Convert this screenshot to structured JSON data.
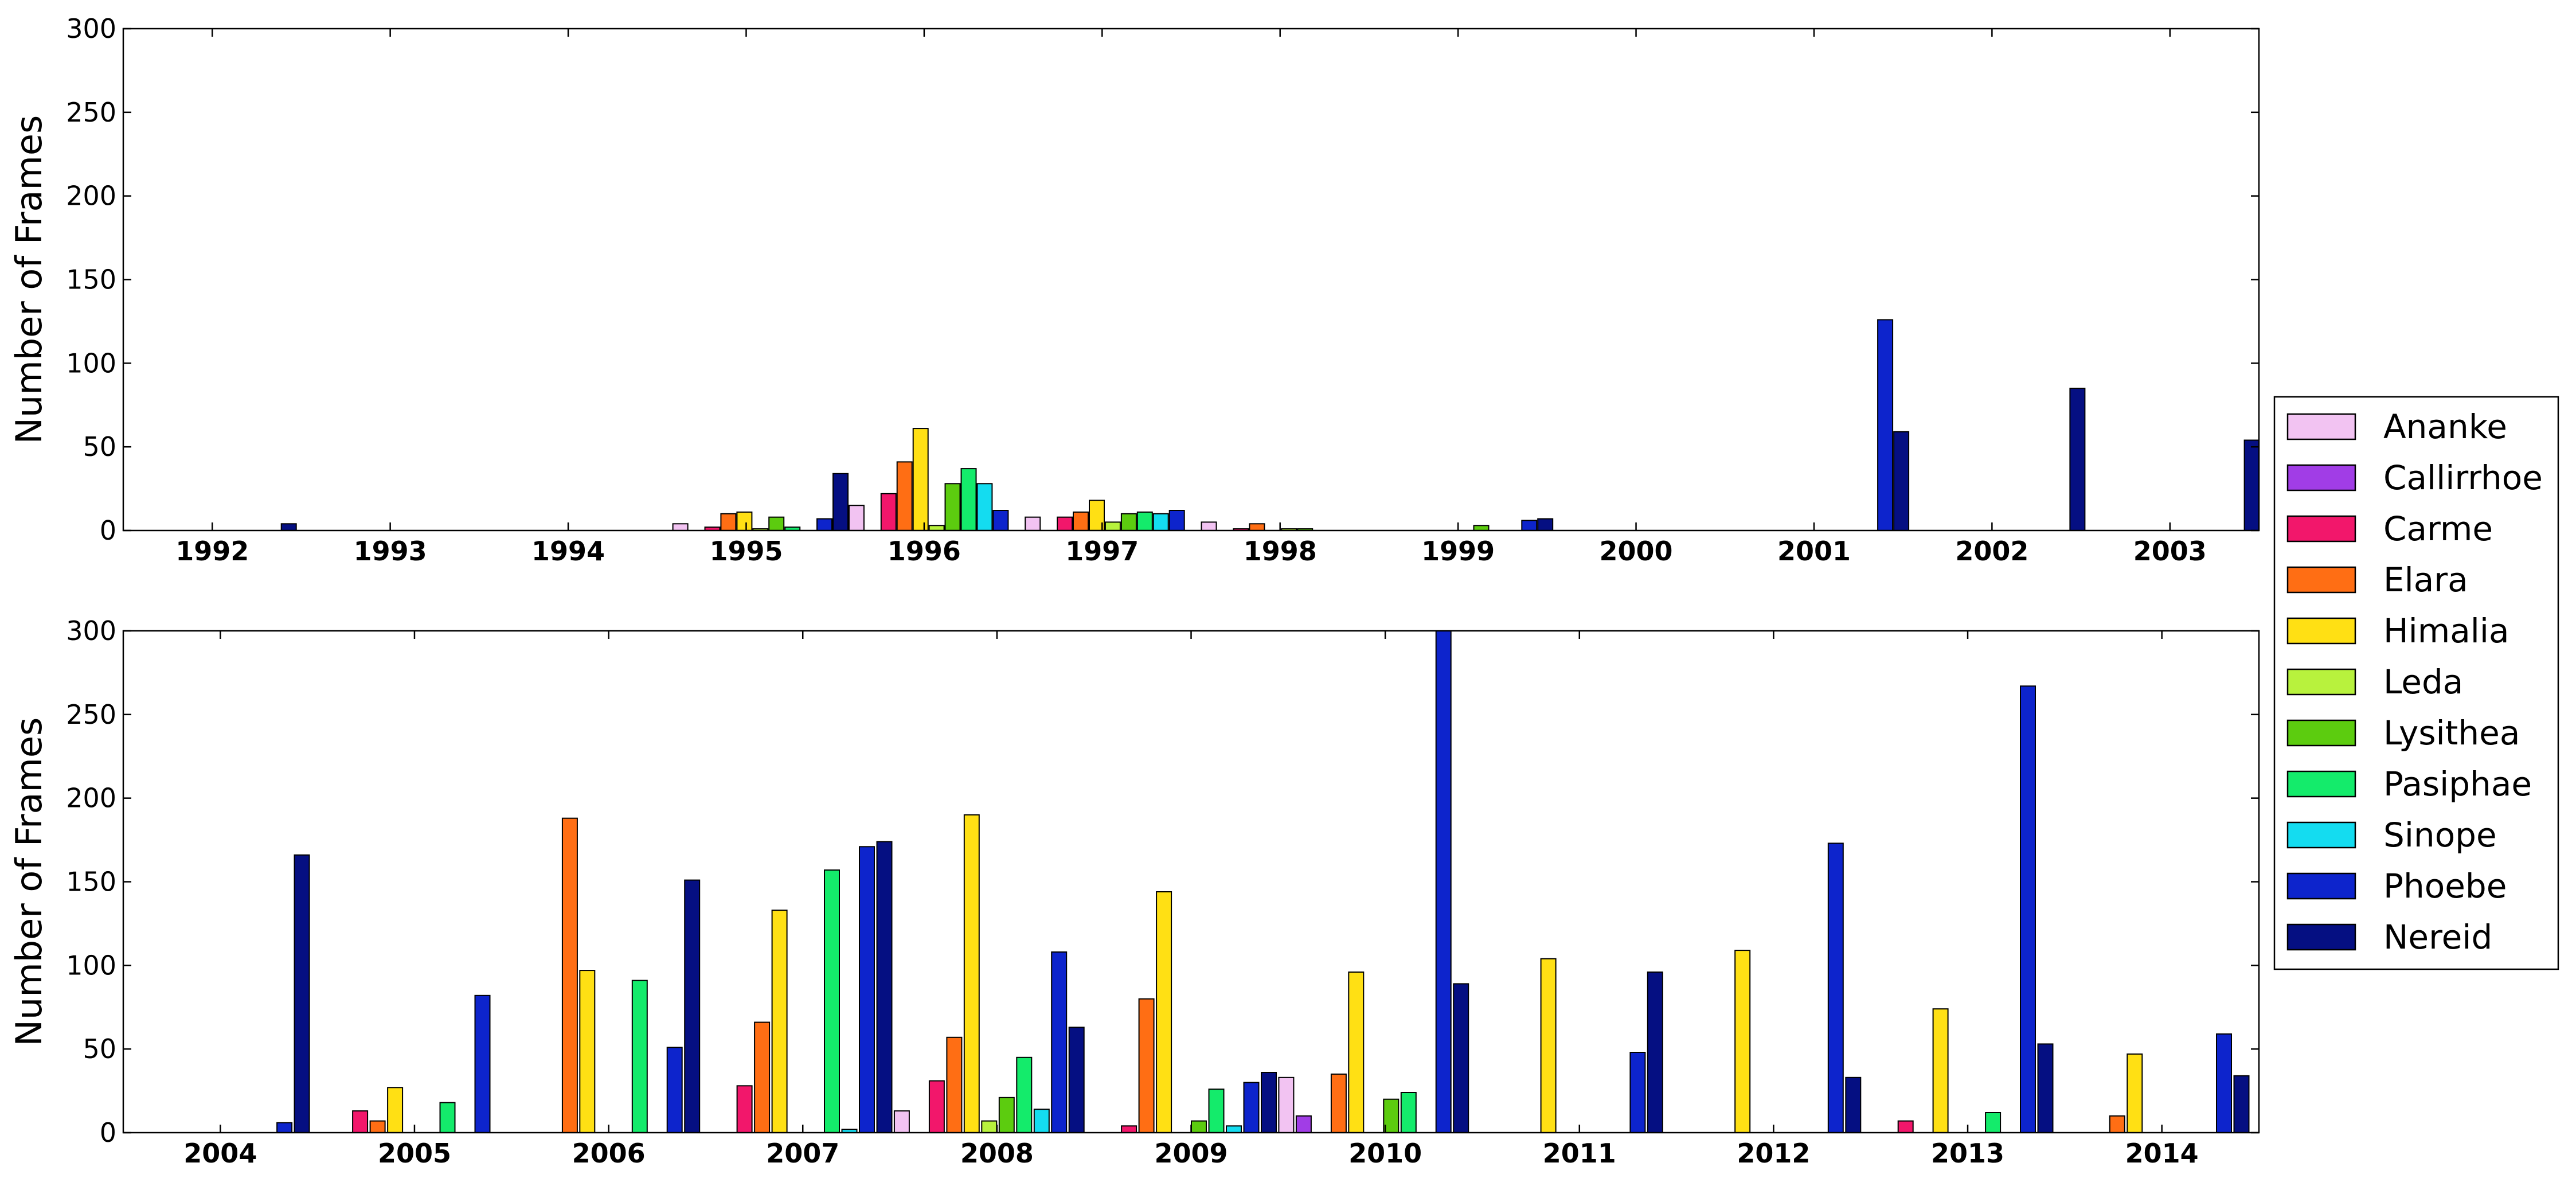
{
  "chart_data": {
    "type": "bar",
    "ylabel": "Number of Frames",
    "ylim": [
      0,
      300
    ],
    "yticks": [
      "0",
      "50",
      "100",
      "150",
      "200",
      "250",
      "300"
    ],
    "legend_position": "right",
    "series": [
      {
        "name": "Ananke",
        "color": "#f2c3f2"
      },
      {
        "name": "Callirrhoe",
        "color": "#a13de6"
      },
      {
        "name": "Carme",
        "color": "#f2176b"
      },
      {
        "name": "Elara",
        "color": "#ff6e14"
      },
      {
        "name": "Himalia",
        "color": "#ffe014"
      },
      {
        "name": "Leda",
        "color": "#b8f23d"
      },
      {
        "name": "Lysithea",
        "color": "#5ccc0f"
      },
      {
        "name": "Pasiphae",
        "color": "#14eb6b"
      },
      {
        "name": "Sinope",
        "color": "#14dcf0"
      },
      {
        "name": "Phoebe",
        "color": "#0d24cc"
      },
      {
        "name": "Nereid",
        "color": "#050f82"
      }
    ],
    "panels": [
      {
        "year_start": 1992,
        "year_end": 2003,
        "xticks": [
          "1992",
          "1993",
          "1994",
          "1995",
          "1996",
          "1997",
          "1998",
          "1999",
          "2000",
          "2001",
          "2002",
          "2003"
        ],
        "bars": [
          {
            "x": 1992.43,
            "series": "Nereid",
            "value": 4
          },
          {
            "x": 1994.63,
            "series": "Ananke",
            "value": 4
          },
          {
            "x": 1994.81,
            "series": "Carme",
            "value": 2
          },
          {
            "x": 1994.9,
            "series": "Elara",
            "value": 10
          },
          {
            "x": 1994.99,
            "series": "Himalia",
            "value": 11
          },
          {
            "x": 1995.08,
            "series": "Leda",
            "value": 1
          },
          {
            "x": 1995.17,
            "series": "Lysithea",
            "value": 8
          },
          {
            "x": 1995.26,
            "series": "Pasiphae",
            "value": 2
          },
          {
            "x": 1995.44,
            "series": "Phoebe",
            "value": 7
          },
          {
            "x": 1995.53,
            "series": "Nereid",
            "value": 34
          },
          {
            "x": 1995.62,
            "series": "Ananke",
            "value": 15
          },
          {
            "x": 1995.8,
            "series": "Carme",
            "value": 22
          },
          {
            "x": 1995.89,
            "series": "Elara",
            "value": 41
          },
          {
            "x": 1995.98,
            "series": "Himalia",
            "value": 61
          },
          {
            "x": 1996.07,
            "series": "Leda",
            "value": 3
          },
          {
            "x": 1996.16,
            "series": "Lysithea",
            "value": 28
          },
          {
            "x": 1996.25,
            "series": "Pasiphae",
            "value": 37
          },
          {
            "x": 1996.34,
            "series": "Sinope",
            "value": 28
          },
          {
            "x": 1996.43,
            "series": "Phoebe",
            "value": 12
          },
          {
            "x": 1996.61,
            "series": "Ananke",
            "value": 8
          },
          {
            "x": 1996.79,
            "series": "Carme",
            "value": 8
          },
          {
            "x": 1996.88,
            "series": "Elara",
            "value": 11
          },
          {
            "x": 1996.97,
            "series": "Himalia",
            "value": 18
          },
          {
            "x": 1997.06,
            "series": "Leda",
            "value": 5
          },
          {
            "x": 1997.15,
            "series": "Lysithea",
            "value": 10
          },
          {
            "x": 1997.24,
            "series": "Pasiphae",
            "value": 11
          },
          {
            "x": 1997.33,
            "series": "Sinope",
            "value": 10
          },
          {
            "x": 1997.42,
            "series": "Phoebe",
            "value": 12
          },
          {
            "x": 1997.6,
            "series": "Ananke",
            "value": 5
          },
          {
            "x": 1997.78,
            "series": "Carme",
            "value": 1
          },
          {
            "x": 1997.87,
            "series": "Elara",
            "value": 4
          },
          {
            "x": 1998.05,
            "series": "Leda",
            "value": 1
          },
          {
            "x": 1998.14,
            "series": "Lysithea",
            "value": 1
          },
          {
            "x": 1999.13,
            "series": "Lysithea",
            "value": 3
          },
          {
            "x": 1999.4,
            "series": "Phoebe",
            "value": 6
          },
          {
            "x": 1999.49,
            "series": "Nereid",
            "value": 7
          },
          {
            "x": 2001.4,
            "series": "Phoebe",
            "value": 126
          },
          {
            "x": 2001.49,
            "series": "Nereid",
            "value": 59
          },
          {
            "x": 2002.48,
            "series": "Nereid",
            "value": 85
          },
          {
            "x": 2003.46,
            "series": "Nereid",
            "value": 54
          }
        ]
      },
      {
        "year_start": 2004,
        "year_end": 2014,
        "xticks": [
          "2004",
          "2005",
          "2006",
          "2007",
          "2008",
          "2009",
          "2010",
          "2011",
          "2012",
          "2013",
          "2014"
        ],
        "bars": [
          {
            "x": 2004.33,
            "series": "Phoebe",
            "value": 6
          },
          {
            "x": 2004.42,
            "series": "Nereid",
            "value": 166
          },
          {
            "x": 2004.72,
            "series": "Carme",
            "value": 13
          },
          {
            "x": 2004.81,
            "series": "Elara",
            "value": 7
          },
          {
            "x": 2004.9,
            "series": "Himalia",
            "value": 27
          },
          {
            "x": 2005.17,
            "series": "Pasiphae",
            "value": 18
          },
          {
            "x": 2005.35,
            "series": "Phoebe",
            "value": 82
          },
          {
            "x": 2005.8,
            "series": "Elara",
            "value": 188
          },
          {
            "x": 2005.89,
            "series": "Himalia",
            "value": 97
          },
          {
            "x": 2006.16,
            "series": "Pasiphae",
            "value": 91
          },
          {
            "x": 2006.34,
            "series": "Phoebe",
            "value": 51
          },
          {
            "x": 2006.43,
            "series": "Nereid",
            "value": 151
          },
          {
            "x": 2006.7,
            "series": "Carme",
            "value": 28
          },
          {
            "x": 2006.79,
            "series": "Elara",
            "value": 66
          },
          {
            "x": 2006.88,
            "series": "Himalia",
            "value": 133
          },
          {
            "x": 2007.15,
            "series": "Pasiphae",
            "value": 157
          },
          {
            "x": 2007.24,
            "series": "Sinope",
            "value": 2
          },
          {
            "x": 2007.33,
            "series": "Phoebe",
            "value": 171
          },
          {
            "x": 2007.42,
            "series": "Nereid",
            "value": 174
          },
          {
            "x": 2007.51,
            "series": "Ananke",
            "value": 13
          },
          {
            "x": 2007.69,
            "series": "Carme",
            "value": 31
          },
          {
            "x": 2007.78,
            "series": "Elara",
            "value": 57
          },
          {
            "x": 2007.87,
            "series": "Himalia",
            "value": 190
          },
          {
            "x": 2007.96,
            "series": "Leda",
            "value": 7
          },
          {
            "x": 2008.05,
            "series": "Lysithea",
            "value": 21
          },
          {
            "x": 2008.14,
            "series": "Pasiphae",
            "value": 45
          },
          {
            "x": 2008.23,
            "series": "Sinope",
            "value": 14
          },
          {
            "x": 2008.32,
            "series": "Phoebe",
            "value": 108
          },
          {
            "x": 2008.41,
            "series": "Nereid",
            "value": 63
          },
          {
            "x": 2008.68,
            "series": "Carme",
            "value": 4
          },
          {
            "x": 2008.77,
            "series": "Elara",
            "value": 80
          },
          {
            "x": 2008.86,
            "series": "Himalia",
            "value": 144
          },
          {
            "x": 2009.04,
            "series": "Lysithea",
            "value": 7
          },
          {
            "x": 2009.13,
            "series": "Pasiphae",
            "value": 26
          },
          {
            "x": 2009.22,
            "series": "Sinope",
            "value": 4
          },
          {
            "x": 2009.31,
            "series": "Phoebe",
            "value": 30
          },
          {
            "x": 2009.4,
            "series": "Nereid",
            "value": 36
          },
          {
            "x": 2009.49,
            "series": "Ananke",
            "value": 33
          },
          {
            "x": 2009.58,
            "series": "Callirrhoe",
            "value": 10
          },
          {
            "x": 2009.76,
            "series": "Elara",
            "value": 35
          },
          {
            "x": 2009.85,
            "series": "Himalia",
            "value": 96
          },
          {
            "x": 2010.03,
            "series": "Lysithea",
            "value": 20
          },
          {
            "x": 2010.12,
            "series": "Pasiphae",
            "value": 24
          },
          {
            "x": 2010.3,
            "series": "Phoebe",
            "value": 300
          },
          {
            "x": 2010.39,
            "series": "Nereid",
            "value": 89
          },
          {
            "x": 2010.84,
            "series": "Himalia",
            "value": 104
          },
          {
            "x": 2011.3,
            "series": "Phoebe",
            "value": 48
          },
          {
            "x": 2011.39,
            "series": "Nereid",
            "value": 96
          },
          {
            "x": 2011.84,
            "series": "Himalia",
            "value": 109
          },
          {
            "x": 2012.32,
            "series": "Phoebe",
            "value": 173
          },
          {
            "x": 2012.41,
            "series": "Nereid",
            "value": 33
          },
          {
            "x": 2012.68,
            "series": "Carme",
            "value": 7
          },
          {
            "x": 2012.86,
            "series": "Himalia",
            "value": 74
          },
          {
            "x": 2013.13,
            "series": "Pasiphae",
            "value": 12
          },
          {
            "x": 2013.31,
            "series": "Phoebe",
            "value": 267
          },
          {
            "x": 2013.4,
            "series": "Nereid",
            "value": 53
          },
          {
            "x": 2013.77,
            "series": "Elara",
            "value": 10
          },
          {
            "x": 2013.86,
            "series": "Himalia",
            "value": 47
          },
          {
            "x": 2014.32,
            "series": "Phoebe",
            "value": 59
          },
          {
            "x": 2014.41,
            "series": "Nereid",
            "value": 34
          }
        ]
      }
    ]
  }
}
